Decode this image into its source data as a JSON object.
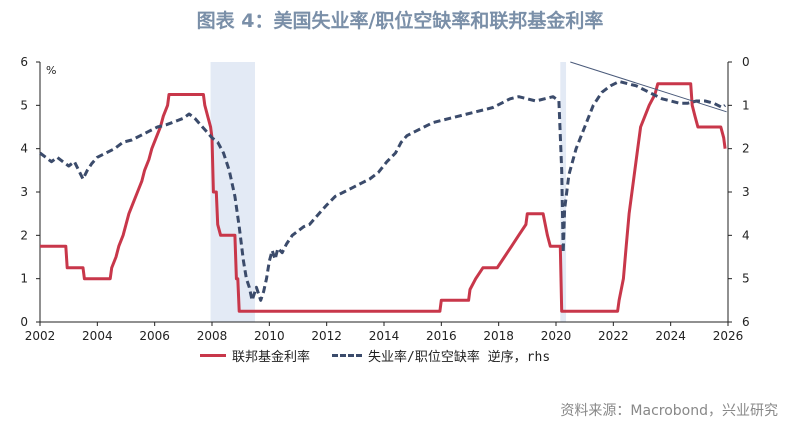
{
  "title": "图表 4：美国失业率/职位空缺率和联邦基金利率",
  "source": "资料来源：Macrobond，兴业研究",
  "colors": {
    "fed_funds": "#c8374a",
    "vacancy_ratio": "#3b4b6b",
    "recession": "#e3eaf5",
    "trend": "#4a5a7a"
  },
  "chart_data": {
    "type": "line",
    "left_axis": {
      "unit": "%",
      "ylim": [
        0,
        6
      ],
      "ticks": [
        "0",
        "1",
        "2",
        "3",
        "4",
        "5",
        "6"
      ]
    },
    "right_axis": {
      "inverted": true,
      "ylim": [
        0,
        6
      ],
      "ticks": [
        "0",
        "1",
        "2",
        "3",
        "4",
        "5",
        "6"
      ]
    },
    "x_axis": {
      "xlim": [
        2002,
        2026
      ],
      "ticks": [
        "2002",
        "2004",
        "2006",
        "2008",
        "2010",
        "2012",
        "2014",
        "2016",
        "2018",
        "2020",
        "2022",
        "2024",
        "2026"
      ]
    },
    "recession_shading": [
      [
        2007.95,
        2009.5
      ],
      [
        2020.15,
        2020.35
      ]
    ],
    "series": [
      {
        "name": "联邦基金利率",
        "axis": "left",
        "style": "solid",
        "points": [
          [
            2002.0,
            1.75
          ],
          [
            2002.9,
            1.75
          ],
          [
            2002.95,
            1.25
          ],
          [
            2003.5,
            1.25
          ],
          [
            2003.55,
            1.0
          ],
          [
            2004.45,
            1.0
          ],
          [
            2004.5,
            1.25
          ],
          [
            2004.65,
            1.5
          ],
          [
            2004.75,
            1.75
          ],
          [
            2004.9,
            2.0
          ],
          [
            2005.0,
            2.25
          ],
          [
            2005.1,
            2.5
          ],
          [
            2005.25,
            2.75
          ],
          [
            2005.4,
            3.0
          ],
          [
            2005.55,
            3.25
          ],
          [
            2005.65,
            3.5
          ],
          [
            2005.8,
            3.75
          ],
          [
            2005.9,
            4.0
          ],
          [
            2006.05,
            4.25
          ],
          [
            2006.2,
            4.5
          ],
          [
            2006.3,
            4.75
          ],
          [
            2006.45,
            5.0
          ],
          [
            2006.5,
            5.25
          ],
          [
            2007.7,
            5.25
          ],
          [
            2007.75,
            5.0
          ],
          [
            2007.85,
            4.75
          ],
          [
            2007.95,
            4.5
          ],
          [
            2008.0,
            4.25
          ],
          [
            2008.05,
            3.0
          ],
          [
            2008.15,
            3.0
          ],
          [
            2008.2,
            2.25
          ],
          [
            2008.3,
            2.0
          ],
          [
            2008.8,
            2.0
          ],
          [
            2008.85,
            1.0
          ],
          [
            2008.9,
            1.0
          ],
          [
            2008.95,
            0.25
          ],
          [
            2015.95,
            0.25
          ],
          [
            2016.0,
            0.5
          ],
          [
            2016.95,
            0.5
          ],
          [
            2017.0,
            0.75
          ],
          [
            2017.2,
            1.0
          ],
          [
            2017.45,
            1.25
          ],
          [
            2017.95,
            1.25
          ],
          [
            2018.2,
            1.5
          ],
          [
            2018.45,
            1.75
          ],
          [
            2018.7,
            2.0
          ],
          [
            2018.95,
            2.25
          ],
          [
            2019.0,
            2.5
          ],
          [
            2019.55,
            2.5
          ],
          [
            2019.7,
            2.0
          ],
          [
            2019.8,
            1.75
          ],
          [
            2020.15,
            1.75
          ],
          [
            2020.2,
            0.25
          ],
          [
            2022.15,
            0.25
          ],
          [
            2022.2,
            0.5
          ],
          [
            2022.35,
            1.0
          ],
          [
            2022.45,
            1.75
          ],
          [
            2022.55,
            2.5
          ],
          [
            2022.7,
            3.25
          ],
          [
            2022.85,
            4.0
          ],
          [
            2022.95,
            4.5
          ],
          [
            2023.1,
            4.75
          ],
          [
            2023.25,
            5.0
          ],
          [
            2023.45,
            5.25
          ],
          [
            2023.55,
            5.5
          ],
          [
            2024.7,
            5.5
          ],
          [
            2024.75,
            5.0
          ],
          [
            2024.85,
            4.75
          ],
          [
            2024.95,
            4.5
          ],
          [
            2025.75,
            4.5
          ],
          [
            2025.85,
            4.25
          ],
          [
            2025.9,
            4.0
          ]
        ]
      },
      {
        "name": "失业率/职位空缺率 逆序，rhs",
        "axis": "right",
        "style": "dashed",
        "points": [
          [
            2002.0,
            2.1
          ],
          [
            2002.2,
            2.2
          ],
          [
            2002.4,
            2.3
          ],
          [
            2002.6,
            2.2
          ],
          [
            2002.8,
            2.3
          ],
          [
            2003.0,
            2.4
          ],
          [
            2003.2,
            2.3
          ],
          [
            2003.35,
            2.5
          ],
          [
            2003.5,
            2.7
          ],
          [
            2003.65,
            2.5
          ],
          [
            2003.8,
            2.35
          ],
          [
            2004.0,
            2.2
          ],
          [
            2004.3,
            2.1
          ],
          [
            2004.6,
            2.0
          ],
          [
            2004.9,
            1.85
          ],
          [
            2005.2,
            1.8
          ],
          [
            2005.5,
            1.7
          ],
          [
            2005.8,
            1.6
          ],
          [
            2006.1,
            1.5
          ],
          [
            2006.4,
            1.45
          ],
          [
            2006.6,
            1.4
          ],
          [
            2006.8,
            1.35
          ],
          [
            2007.0,
            1.3
          ],
          [
            2007.2,
            1.2
          ],
          [
            2007.4,
            1.3
          ],
          [
            2007.6,
            1.45
          ],
          [
            2007.8,
            1.6
          ],
          [
            2008.0,
            1.75
          ],
          [
            2008.2,
            1.85
          ],
          [
            2008.4,
            2.1
          ],
          [
            2008.6,
            2.5
          ],
          [
            2008.8,
            3.1
          ],
          [
            2008.95,
            3.8
          ],
          [
            2009.1,
            4.6
          ],
          [
            2009.2,
            5.0
          ],
          [
            2009.3,
            5.2
          ],
          [
            2009.4,
            5.5
          ],
          [
            2009.55,
            5.2
          ],
          [
            2009.7,
            5.5
          ],
          [
            2009.8,
            5.3
          ],
          [
            2009.9,
            5.0
          ],
          [
            2010.0,
            4.6
          ],
          [
            2010.1,
            4.35
          ],
          [
            2010.2,
            4.55
          ],
          [
            2010.3,
            4.3
          ],
          [
            2010.45,
            4.4
          ],
          [
            2010.6,
            4.2
          ],
          [
            2010.8,
            4.0
          ],
          [
            2011.0,
            3.9
          ],
          [
            2011.2,
            3.8
          ],
          [
            2011.4,
            3.75
          ],
          [
            2011.6,
            3.6
          ],
          [
            2011.8,
            3.45
          ],
          [
            2012.0,
            3.3
          ],
          [
            2012.3,
            3.1
          ],
          [
            2012.6,
            3.0
          ],
          [
            2012.9,
            2.9
          ],
          [
            2013.2,
            2.8
          ],
          [
            2013.5,
            2.7
          ],
          [
            2013.8,
            2.55
          ],
          [
            2014.1,
            2.3
          ],
          [
            2014.4,
            2.1
          ],
          [
            2014.6,
            1.85
          ],
          [
            2014.8,
            1.7
          ],
          [
            2015.1,
            1.6
          ],
          [
            2015.4,
            1.5
          ],
          [
            2015.7,
            1.4
          ],
          [
            2016.0,
            1.35
          ],
          [
            2016.3,
            1.3
          ],
          [
            2016.6,
            1.25
          ],
          [
            2016.9,
            1.2
          ],
          [
            2017.2,
            1.15
          ],
          [
            2017.5,
            1.1
          ],
          [
            2017.8,
            1.05
          ],
          [
            2018.1,
            0.95
          ],
          [
            2018.4,
            0.85
          ],
          [
            2018.7,
            0.8
          ],
          [
            2019.0,
            0.85
          ],
          [
            2019.3,
            0.9
          ],
          [
            2019.6,
            0.85
          ],
          [
            2019.9,
            0.8
          ],
          [
            2020.1,
            0.9
          ],
          [
            2020.2,
            2.5
          ],
          [
            2020.25,
            4.4
          ],
          [
            2020.3,
            3.4
          ],
          [
            2020.45,
            2.6
          ],
          [
            2020.7,
            2.0
          ],
          [
            2021.0,
            1.5
          ],
          [
            2021.3,
            1.0
          ],
          [
            2021.6,
            0.7
          ],
          [
            2021.9,
            0.55
          ],
          [
            2022.2,
            0.45
          ],
          [
            2022.5,
            0.5
          ],
          [
            2022.8,
            0.55
          ],
          [
            2023.1,
            0.65
          ],
          [
            2023.4,
            0.75
          ],
          [
            2023.7,
            0.85
          ],
          [
            2024.0,
            0.9
          ],
          [
            2024.3,
            0.95
          ],
          [
            2024.6,
            0.95
          ],
          [
            2024.9,
            0.9
          ],
          [
            2025.2,
            0.9
          ],
          [
            2025.5,
            0.95
          ],
          [
            2025.8,
            1.05
          ],
          [
            2025.9,
            1.0
          ]
        ]
      },
      {
        "name": "trend",
        "axis": "right",
        "style": "thin",
        "points": [
          [
            2020.5,
            0.0
          ],
          [
            2025.95,
            1.15
          ]
        ]
      }
    ]
  }
}
